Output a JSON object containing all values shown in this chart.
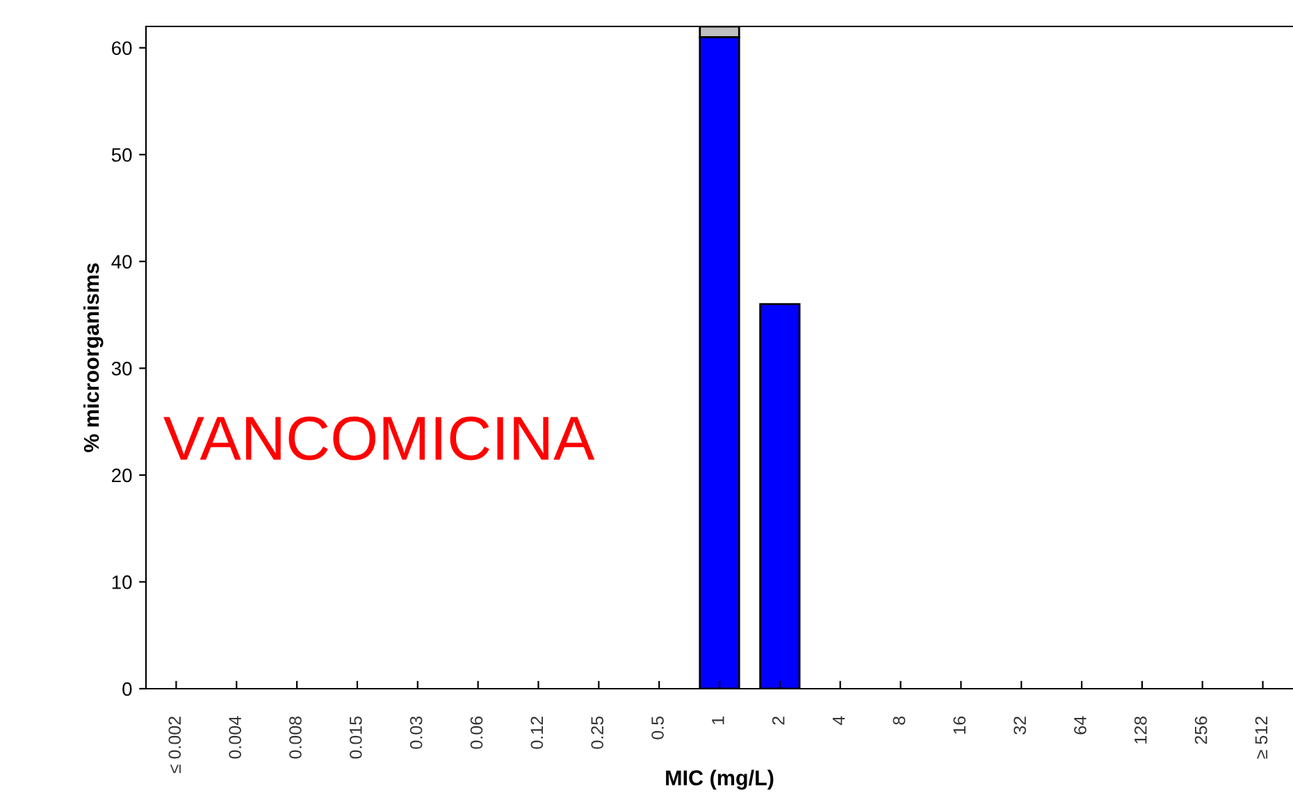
{
  "chart_data": {
    "type": "bar",
    "stacked": true,
    "xlabel": "MIC (mg/L)",
    "ylabel": "% microorganisms",
    "categories": [
      "≤ 0.002",
      "0.004",
      "0.008",
      "0.015",
      "0.03",
      "0.06",
      "0.12",
      "0.25",
      "0.5",
      "1",
      "2",
      "4",
      "8",
      "16",
      "32",
      "64",
      "128",
      "256",
      "≥ 512"
    ],
    "series": [
      {
        "color": "#0000ff",
        "values": [
          null,
          null,
          null,
          null,
          null,
          null,
          null,
          null,
          null,
          61,
          36,
          null,
          null,
          null,
          null,
          null,
          null,
          null,
          null
        ]
      },
      {
        "color": "#c0c0c0",
        "values": [
          null,
          null,
          null,
          null,
          null,
          null,
          null,
          null,
          null,
          1,
          null,
          null,
          null,
          null,
          null,
          null,
          null,
          null,
          null
        ]
      }
    ],
    "ylim": [
      0,
      62
    ],
    "yticks": [
      0,
      10,
      20,
      30,
      40,
      50,
      60
    ],
    "grid": false,
    "annotations": [
      "VANCOMICINA"
    ]
  }
}
